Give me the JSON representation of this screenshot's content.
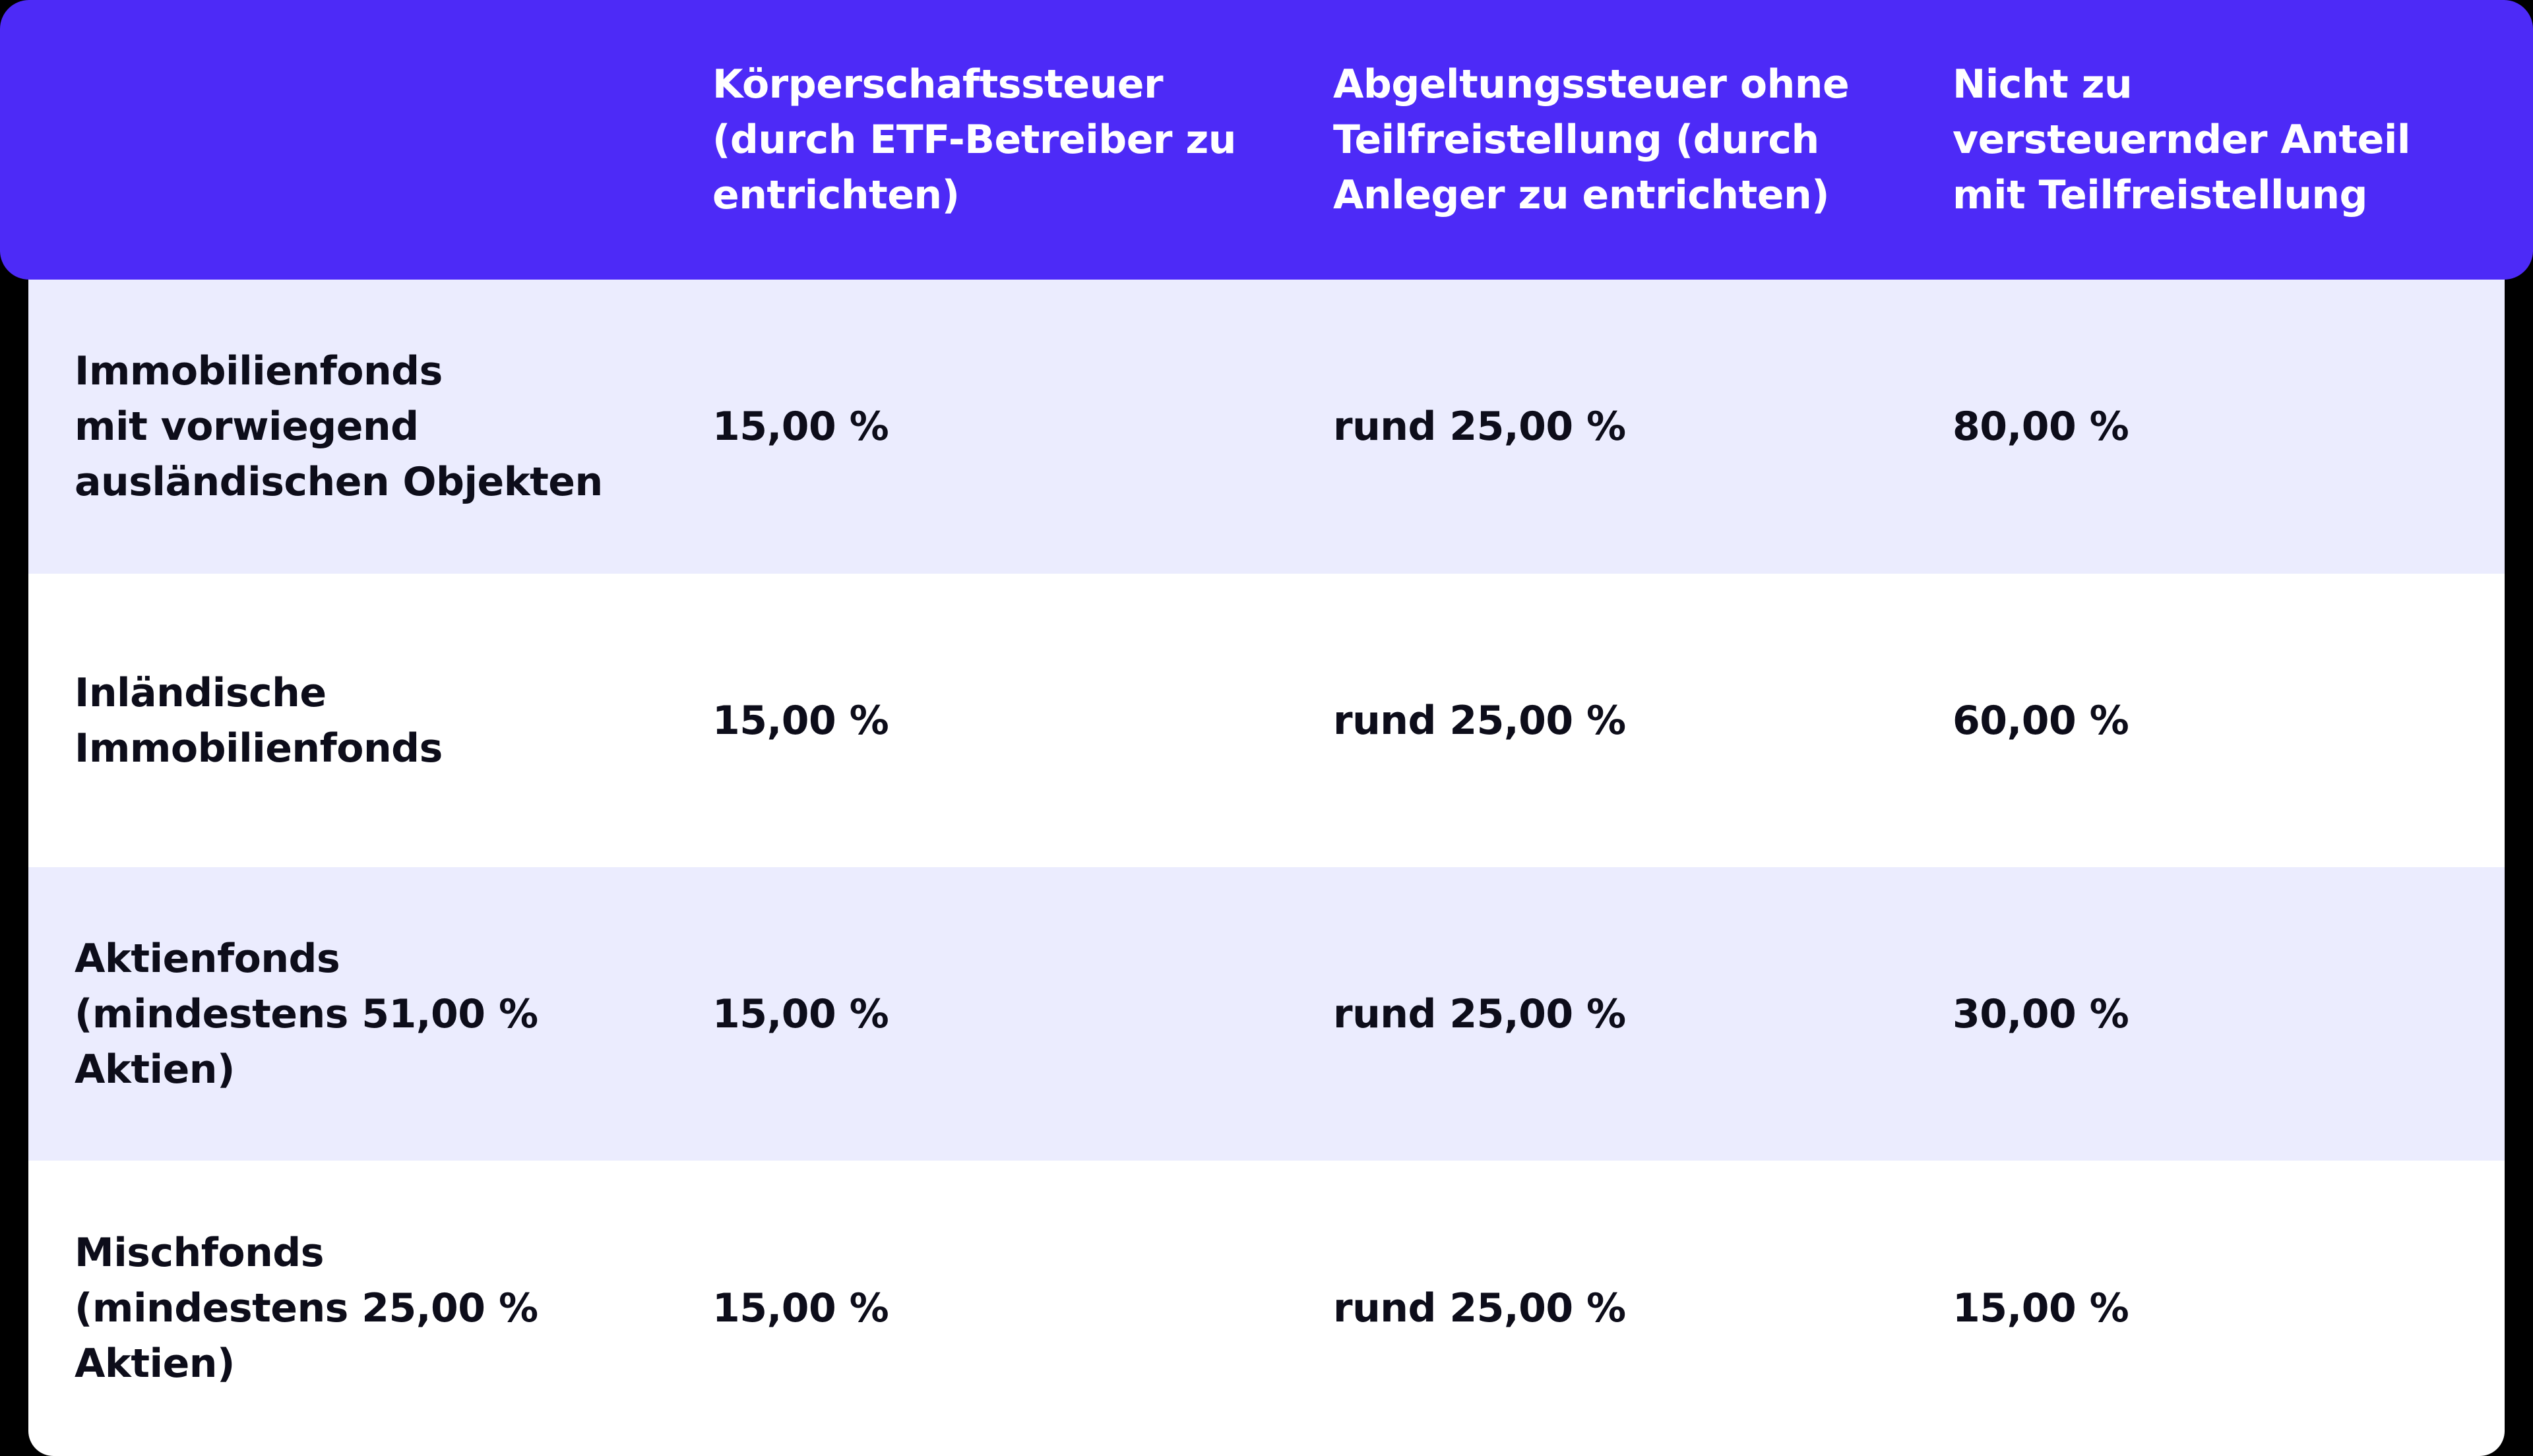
{
  "colors": {
    "header_bg": "#4d2af7",
    "row_shaded": "#ebecfe",
    "row_plain": "#ffffff",
    "text_dark": "#0d0d1a",
    "text_light": "#ffffff"
  },
  "header": {
    "col1": "",
    "col2": "Körperschaftssteuer\n(durch ETF-Betreiber zu\nentrichten)",
    "col3": "Abgeltungssteuer ohne\nTeilfreistellung (durch\nAnleger zu entrichten)",
    "col4": "Nicht zu\nversteuernder Anteil\nmit Teilfreistellung"
  },
  "rows": [
    {
      "label": "Immobilienfonds\nmit vorwiegend\nausländischen Objekten",
      "koerperschaftssteuer": "15,00 %",
      "abgeltungssteuer": "rund 25,00 %",
      "anteil": "80,00 %"
    },
    {
      "label": "Inländische\nImmobilienfonds",
      "koerperschaftssteuer": "15,00 %",
      "abgeltungssteuer": "rund 25,00 %",
      "anteil": "60,00 %"
    },
    {
      "label": "Aktienfonds\n(mindestens 51,00 %\nAktien)",
      "koerperschaftssteuer": "15,00 %",
      "abgeltungssteuer": "rund 25,00 %",
      "anteil": "30,00 %"
    },
    {
      "label": "Mischfonds\n(mindestens 25,00 %\nAktien)",
      "koerperschaftssteuer": "15,00 %",
      "abgeltungssteuer": "rund 25,00 %",
      "anteil": "15,00 %"
    }
  ]
}
